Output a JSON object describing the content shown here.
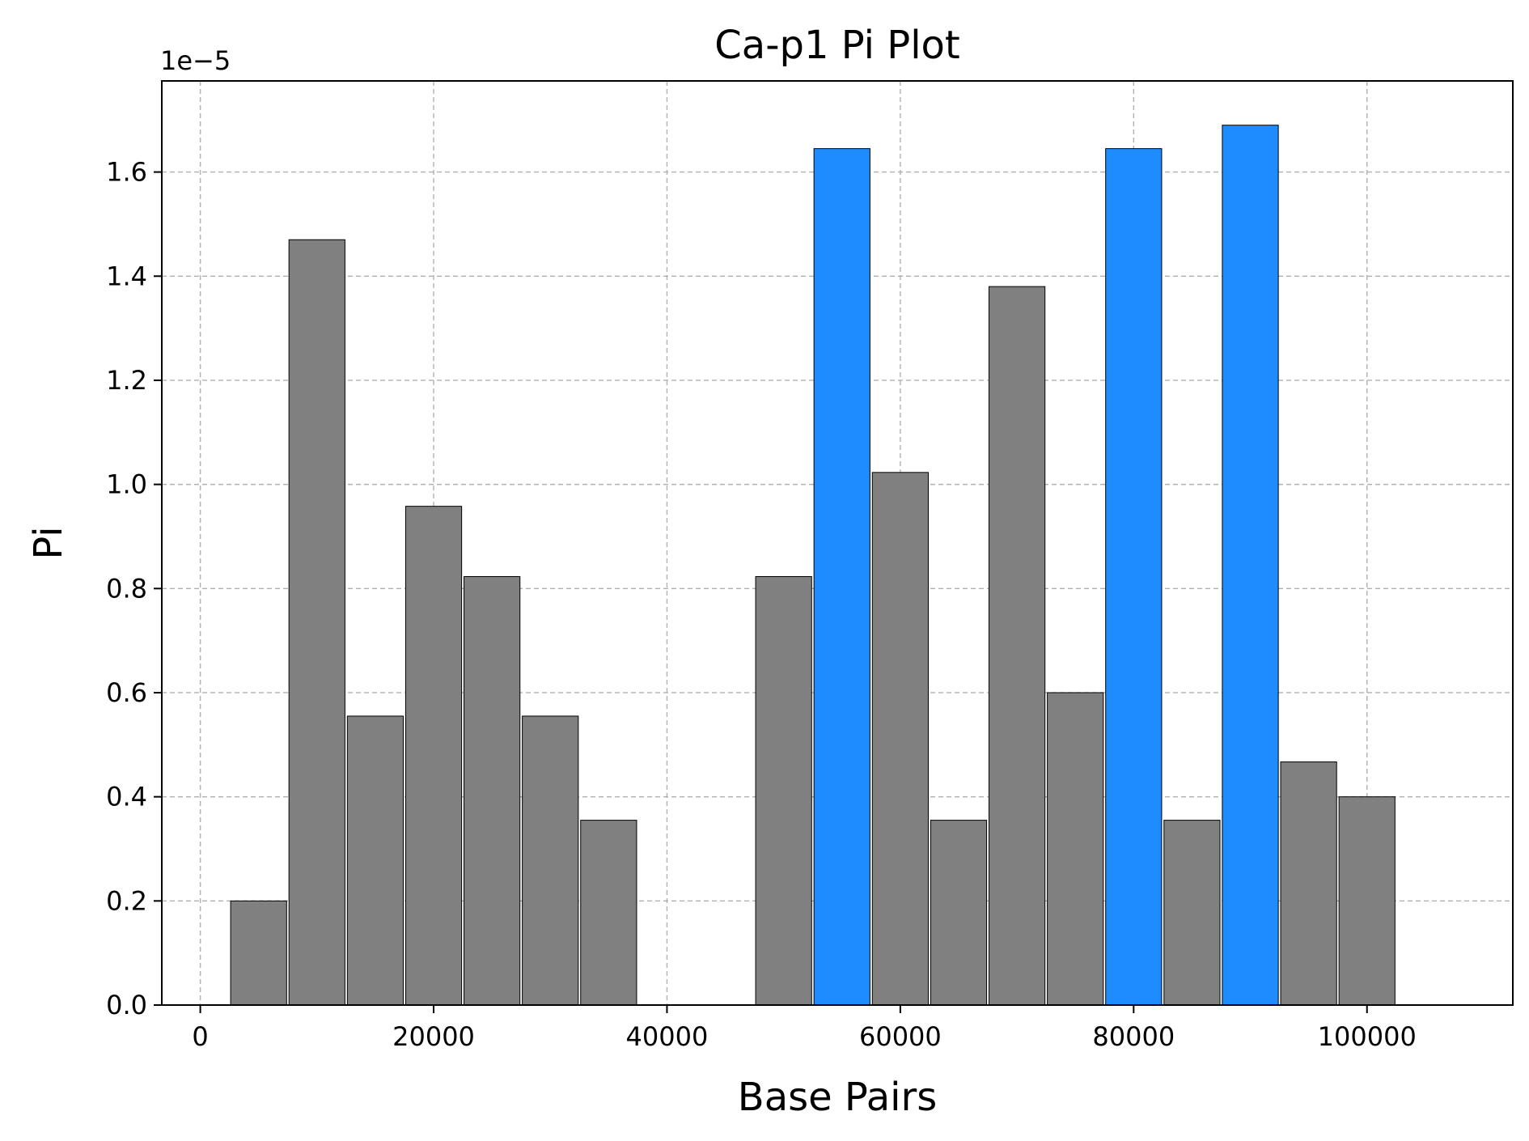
{
  "chart_data": {
    "type": "bar",
    "title": "Ca-p1 Pi Plot",
    "xlabel": "Base Pairs",
    "ylabel": "Pi",
    "y_offset_label": "1e−5",
    "y_scale": 1e-05,
    "xlim": [
      -3300,
      112500
    ],
    "ylim": [
      0,
      1.775e-05
    ],
    "bar_width": 4800,
    "grid": true,
    "x_ticks": [
      0,
      20000,
      40000,
      60000,
      80000,
      100000
    ],
    "y_ticks": [
      0.0,
      0.2,
      0.4,
      0.6,
      0.8,
      1.0,
      1.2,
      1.4,
      1.6
    ],
    "colors": {
      "default": "#808080",
      "highlight": "#1e8cff",
      "edge": "#000000",
      "grid": "#b0b0b0"
    },
    "bars": [
      {
        "x": 5000,
        "value": 2e-06,
        "highlight": false
      },
      {
        "x": 10000,
        "value": 1.47e-05,
        "highlight": false
      },
      {
        "x": 15000,
        "value": 5.55e-06,
        "highlight": false
      },
      {
        "x": 20000,
        "value": 9.58e-06,
        "highlight": false
      },
      {
        "x": 25000,
        "value": 8.23e-06,
        "highlight": false
      },
      {
        "x": 30000,
        "value": 5.55e-06,
        "highlight": false
      },
      {
        "x": 35000,
        "value": 3.55e-06,
        "highlight": false
      },
      {
        "x": 50000,
        "value": 8.23e-06,
        "highlight": false
      },
      {
        "x": 55000,
        "value": 1.645e-05,
        "highlight": true
      },
      {
        "x": 60000,
        "value": 1.023e-05,
        "highlight": false
      },
      {
        "x": 65000,
        "value": 3.55e-06,
        "highlight": false
      },
      {
        "x": 70000,
        "value": 1.38e-05,
        "highlight": false
      },
      {
        "x": 75000,
        "value": 6e-06,
        "highlight": false
      },
      {
        "x": 80000,
        "value": 1.645e-05,
        "highlight": true
      },
      {
        "x": 85000,
        "value": 3.55e-06,
        "highlight": false
      },
      {
        "x": 90000,
        "value": 1.69e-05,
        "highlight": true
      },
      {
        "x": 95000,
        "value": 4.67e-06,
        "highlight": false
      },
      {
        "x": 100000,
        "value": 4e-06,
        "highlight": false
      }
    ]
  }
}
